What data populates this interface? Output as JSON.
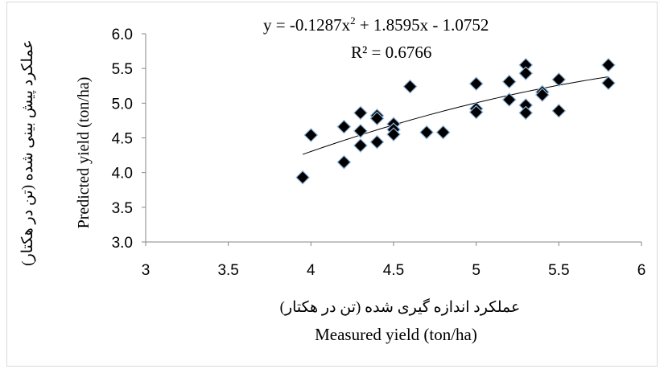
{
  "chart_data": {
    "type": "scatter",
    "x_axis": {
      "label_fa": "عملکرد اندازه گیری شده (تن در هکتار)",
      "label_en": "Measured yield (ton/ha)",
      "min": 3,
      "max": 6,
      "ticks": [
        "3",
        "3.5",
        "4",
        "4.5",
        "5",
        "5.5",
        "6"
      ]
    },
    "y_axis": {
      "label_fa": "عملکرد پیش بینی شده (تن در هکتار)",
      "label_en": "Predicted yield (ton/ha)",
      "min": 3.0,
      "max": 6.0,
      "ticks": [
        "3.0",
        "3.5",
        "4.0",
        "4.5",
        "5.0",
        "5.5",
        "6.0"
      ]
    },
    "grid": false,
    "marker": "diamond",
    "points": [
      {
        "x": 3.95,
        "y": 3.93
      },
      {
        "x": 4.0,
        "y": 4.54
      },
      {
        "x": 4.2,
        "y": 4.15
      },
      {
        "x": 4.2,
        "y": 4.66
      },
      {
        "x": 4.3,
        "y": 4.86
      },
      {
        "x": 4.3,
        "y": 4.6
      },
      {
        "x": 4.3,
        "y": 4.39
      },
      {
        "x": 4.4,
        "y": 4.82
      },
      {
        "x": 4.4,
        "y": 4.78
      },
      {
        "x": 4.4,
        "y": 4.44
      },
      {
        "x": 4.5,
        "y": 4.7
      },
      {
        "x": 4.5,
        "y": 4.62
      },
      {
        "x": 4.5,
        "y": 4.55
      },
      {
        "x": 4.6,
        "y": 5.24
      },
      {
        "x": 4.7,
        "y": 4.58
      },
      {
        "x": 4.8,
        "y": 4.58
      },
      {
        "x": 5.0,
        "y": 5.28
      },
      {
        "x": 5.0,
        "y": 4.92
      },
      {
        "x": 5.0,
        "y": 4.87
      },
      {
        "x": 5.2,
        "y": 5.31
      },
      {
        "x": 5.2,
        "y": 5.05
      },
      {
        "x": 5.3,
        "y": 5.55
      },
      {
        "x": 5.3,
        "y": 5.43
      },
      {
        "x": 5.3,
        "y": 4.97
      },
      {
        "x": 5.3,
        "y": 4.86
      },
      {
        "x": 5.4,
        "y": 5.16
      },
      {
        "x": 5.4,
        "y": 5.12
      },
      {
        "x": 5.5,
        "y": 5.34
      },
      {
        "x": 5.5,
        "y": 4.89
      },
      {
        "x": 5.8,
        "y": 5.55
      },
      {
        "x": 5.8,
        "y": 5.29
      }
    ],
    "trendline": {
      "type": "polynomial",
      "coefficients": [
        -0.1287,
        1.8595,
        -1.0752
      ],
      "x_range": [
        3.95,
        5.8
      ]
    },
    "annotations": {
      "equation_prefix": "y = -0.1287x",
      "equation_sup": "2",
      "equation_suffix": " + 1.8595x - 1.0752",
      "r_squared": "R² = 0.6766"
    }
  }
}
